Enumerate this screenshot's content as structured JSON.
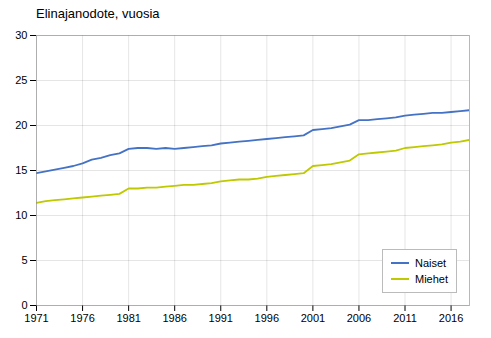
{
  "chart_data": {
    "type": "line",
    "title": "Elinajanodote, vuosia",
    "x": [
      1971,
      1972,
      1973,
      1974,
      1975,
      1976,
      1977,
      1978,
      1979,
      1980,
      1981,
      1982,
      1983,
      1984,
      1985,
      1986,
      1987,
      1988,
      1989,
      1990,
      1991,
      1992,
      1993,
      1994,
      1995,
      1996,
      1997,
      1998,
      1999,
      2000,
      2001,
      2002,
      2003,
      2004,
      2005,
      2006,
      2007,
      2008,
      2009,
      2010,
      2011,
      2012,
      2013,
      2014,
      2015,
      2016,
      2017,
      2018
    ],
    "series": [
      {
        "name": "Naiset",
        "color": "#4472c4",
        "values": [
          14.7,
          14.9,
          15.1,
          15.3,
          15.5,
          15.8,
          16.2,
          16.4,
          16.7,
          16.9,
          17.4,
          17.5,
          17.5,
          17.4,
          17.5,
          17.4,
          17.5,
          17.6,
          17.7,
          17.8,
          18.0,
          18.1,
          18.2,
          18.3,
          18.4,
          18.5,
          18.6,
          18.7,
          18.8,
          18.9,
          19.5,
          19.6,
          19.7,
          19.9,
          20.1,
          20.6,
          20.6,
          20.7,
          20.8,
          20.9,
          21.1,
          21.2,
          21.3,
          21.4,
          21.4,
          21.5,
          21.6,
          21.7
        ]
      },
      {
        "name": "Miehet",
        "color": "#bec900",
        "values": [
          11.4,
          11.6,
          11.7,
          11.8,
          11.9,
          12.0,
          12.1,
          12.2,
          12.3,
          12.4,
          13.0,
          13.0,
          13.1,
          13.1,
          13.2,
          13.3,
          13.4,
          13.4,
          13.5,
          13.6,
          13.8,
          13.9,
          14.0,
          14.0,
          14.1,
          14.3,
          14.4,
          14.5,
          14.6,
          14.7,
          15.5,
          15.6,
          15.7,
          15.9,
          16.1,
          16.8,
          16.9,
          17.0,
          17.1,
          17.2,
          17.5,
          17.6,
          17.7,
          17.8,
          17.9,
          18.1,
          18.2,
          18.4
        ]
      }
    ],
    "xlim": [
      1971,
      2018
    ],
    "xticks": [
      1971,
      1976,
      1981,
      1986,
      1991,
      1996,
      2001,
      2006,
      2011,
      2016
    ],
    "ylim": [
      0,
      30
    ],
    "yticks": [
      0,
      5,
      10,
      15,
      20,
      25,
      30
    ],
    "grid": true,
    "legend": "lower right"
  }
}
